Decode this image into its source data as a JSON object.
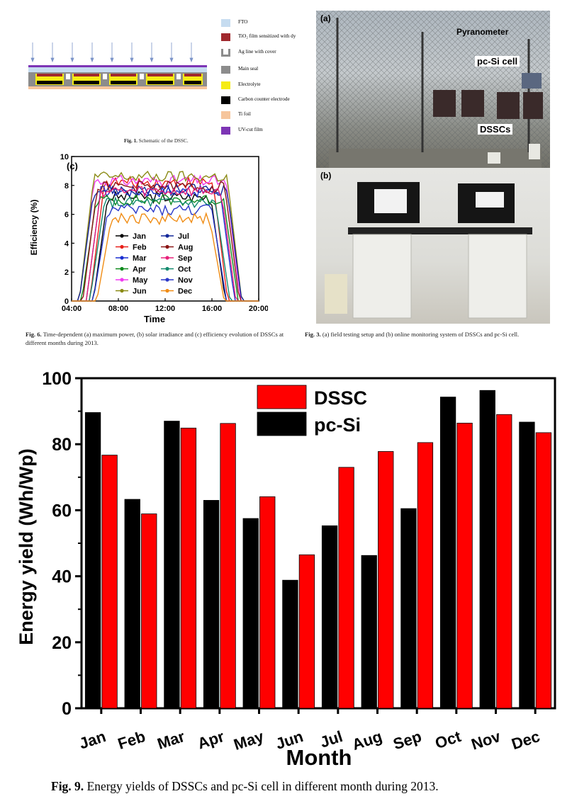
{
  "fig1": {
    "caption_prefix": "Fig. 1.",
    "caption_text": "Schematic of the DSSC.",
    "legend": [
      {
        "label": "FTO",
        "color": "#c6dcf0"
      },
      {
        "label": "TiO₂ film sensitized with dy",
        "color": "#a0282d"
      },
      {
        "label": "Ag line with cover",
        "color": "#8c8c8c"
      },
      {
        "label": "Main seal",
        "color": "#8c8c8c"
      },
      {
        "label": "Electrolyte",
        "color": "#f5ec16"
      },
      {
        "label": "Carbon counter electrode",
        "color": "#000000"
      },
      {
        "label": "Ti foil",
        "color": "#f6c59c"
      },
      {
        "label": "UV-cut film",
        "color": "#7d35b5"
      }
    ]
  },
  "fig3": {
    "caption_prefix": "Fig. 3.",
    "caption_text": "(a) field testing setup and (b) online monitoring system of DSSCs and pc-Si cell.",
    "panel_a": "(a)",
    "panel_b": "(b)",
    "label_pyranometer": "Pyranometer",
    "label_pcsi": "pc-Si cell",
    "label_dsscs": "DSSCs"
  },
  "fig6": {
    "caption_prefix": "Fig. 6.",
    "caption_text": "Time-dependent (a) maximum power, (b) solar irradiance and (c) efficiency evolution of DSSCs at different months during 2013.",
    "panel": "(c)",
    "xlabel": "Time",
    "ylabel": "Efficiency (%)",
    "xticks": [
      "04:00",
      "08:00",
      "12:00",
      "16:00",
      "20:00"
    ],
    "yticks": [
      "0",
      "2",
      "4",
      "6",
      "8",
      "10"
    ],
    "series": [
      {
        "name": "Jan",
        "color": "#000000",
        "start": 6.2,
        "end": 16.8,
        "plateau": 7.2
      },
      {
        "name": "Feb",
        "color": "#e8201a",
        "start": 5.9,
        "end": 17.0,
        "plateau": 8.2
      },
      {
        "name": "Mar",
        "color": "#1a2fd0",
        "start": 5.6,
        "end": 17.6,
        "plateau": 7.6
      },
      {
        "name": "Apr",
        "color": "#0e8a1e",
        "start": 5.2,
        "end": 17.9,
        "plateau": 7.0
      },
      {
        "name": "May",
        "color": "#f03cf0",
        "start": 5.0,
        "end": 18.1,
        "plateau": 8.3
      },
      {
        "name": "Jun",
        "color": "#8a8a14",
        "start": 5.0,
        "end": 18.2,
        "plateau": 8.6
      },
      {
        "name": "Jul",
        "color": "#14289a",
        "start": 5.0,
        "end": 18.2,
        "plateau": 7.7
      },
      {
        "name": "Aug",
        "color": "#8a1414",
        "start": 5.3,
        "end": 18.0,
        "plateau": 7.9
      },
      {
        "name": "Sep",
        "color": "#e8207a",
        "start": 5.6,
        "end": 17.7,
        "plateau": 7.6
      },
      {
        "name": "Oct",
        "color": "#138a6e",
        "start": 5.9,
        "end": 17.2,
        "plateau": 6.8
      },
      {
        "name": "Nov",
        "color": "#2a38c8",
        "start": 6.2,
        "end": 16.9,
        "plateau": 6.3
      },
      {
        "name": "Dec",
        "color": "#f08c14",
        "start": 6.5,
        "end": 16.7,
        "plateau": 5.7
      }
    ]
  },
  "chart_data": {
    "type": "bar",
    "title": "",
    "xlabel": "Month",
    "ylabel": "Energy yield (Wh/Wp)",
    "ylim": [
      0,
      100
    ],
    "yticks": [
      0,
      20,
      40,
      60,
      80,
      100
    ],
    "categories": [
      "Jan",
      "Feb",
      "Mar",
      "Apr",
      "May",
      "Jun",
      "Jul",
      "Aug",
      "Sep",
      "Oct",
      "Nov",
      "Dec"
    ],
    "series": [
      {
        "name": "pc-Si",
        "color": "#000000",
        "values": [
          89.6,
          63.3,
          87.0,
          63.0,
          57.5,
          38.8,
          55.3,
          46.3,
          60.5,
          94.3,
          96.3,
          86.7
        ]
      },
      {
        "name": "DSSC",
        "color": "#ff0000",
        "values": [
          76.7,
          58.9,
          84.9,
          86.3,
          64.1,
          46.5,
          73.0,
          77.8,
          80.5,
          86.4,
          89.0,
          83.5
        ]
      }
    ],
    "legend_position": "top-center",
    "legend_order": [
      "DSSC",
      "pc-Si"
    ],
    "grid": false
  },
  "fig9": {
    "caption_prefix": "Fig. 9.",
    "caption_text": "Energy yields of DSSCs and pc-Si cell in different month during 2013."
  }
}
